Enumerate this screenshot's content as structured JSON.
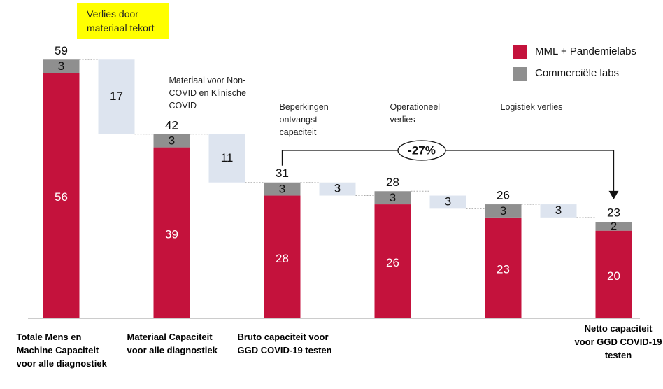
{
  "chart_data": {
    "type": "waterfall",
    "categories": [
      "Totale Mens en Machine Capaciteit voor alle diagnostiek",
      null,
      "Materiaal Capaciteit voor alle diagnostiek",
      null,
      "Bruto capaciteit voor GGD COVID-19 testen",
      null,
      null,
      null,
      null,
      null,
      "Netto capaciteit voor GGD COVID-19 testen"
    ],
    "series": [
      {
        "name": "MML + Pandemielabs",
        "color": "#c4123c",
        "values": [
          56,
          null,
          39,
          null,
          28,
          null,
          26,
          null,
          23,
          null,
          20
        ]
      },
      {
        "name": "Commerciële labs",
        "color": "#8f8f8f",
        "values": [
          3,
          null,
          3,
          null,
          3,
          null,
          3,
          null,
          3,
          null,
          2
        ]
      }
    ],
    "totals": [
      59,
      null,
      42,
      null,
      31,
      null,
      28,
      null,
      26,
      null,
      23
    ],
    "losses": [
      null,
      17,
      null,
      11,
      null,
      3,
      null,
      3,
      null,
      3,
      null
    ],
    "loss_color": "#dde4ef",
    "annotations": [
      null,
      "Verlies door materiaal tekort",
      null,
      "Materiaal voor Non- COVID en Klinische COVID",
      null,
      "Beperkingen ontvangst capaciteit",
      null,
      "Operationeel verlies",
      null,
      "Logistiek verlies",
      null
    ],
    "change_label": "-27%",
    "ylim": [
      0,
      60
    ]
  }
}
